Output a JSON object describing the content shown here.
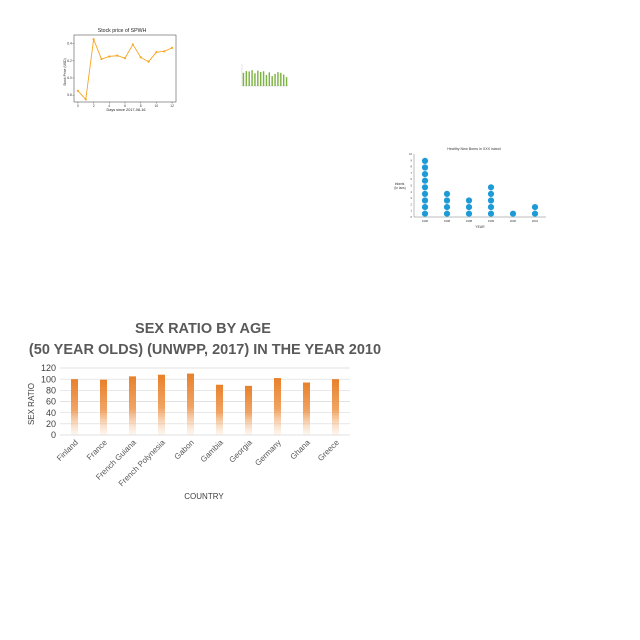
{
  "chart_data": [
    {
      "type": "line",
      "title": "Stock price of SPWH",
      "xlabel": "Days since 2017-08-16",
      "ylabel": "Stock Price (USD)",
      "x": [
        0,
        1,
        2,
        3,
        4,
        5,
        6,
        7,
        8,
        9,
        10,
        11,
        12
      ],
      "values": [
        5.85,
        5.75,
        6.45,
        6.22,
        6.25,
        6.26,
        6.23,
        6.39,
        6.24,
        6.19,
        6.3,
        6.31,
        6.35
      ],
      "xlim": [
        -0.5,
        12.5
      ],
      "ylim": [
        5.72,
        6.5
      ],
      "xticks": [
        "0",
        "2",
        "4",
        "6",
        "8",
        "10",
        "12"
      ],
      "yticks": [
        "5.8",
        "6.0",
        "6.2",
        "6.4"
      ],
      "color": "#f5a623",
      "grid": false
    },
    {
      "type": "bar",
      "values": [
        60,
        68,
        66,
        72,
        58,
        70,
        64,
        67,
        50,
        62,
        45,
        55,
        63,
        60,
        52,
        40
      ],
      "ylim": [
        0,
        100
      ],
      "color": "#7cb342",
      "grid": false
    },
    {
      "type": "scatter",
      "title": "Healthy New Borns in XXX Island",
      "xlabel": "YEAR",
      "ylabel": "Infants (In lacs)",
      "categories": [
        "1996",
        "1998",
        "1998",
        "1999",
        "2000",
        "2001"
      ],
      "values": [
        9,
        4,
        3,
        5,
        1,
        2
      ],
      "ylim": [
        0,
        10
      ],
      "yticks": [
        "0",
        "1",
        "2",
        "3",
        "4",
        "5",
        "6",
        "7",
        "8",
        "9",
        "10"
      ],
      "color": "#1e9bd7",
      "grid": false
    },
    {
      "type": "bar",
      "title": "SEX RATIO BY AGE (50 YEAR OLDS) (UNWPP, 2017) IN THE YEAR 2010",
      "xlabel": "COUNTRY",
      "ylabel": "SEX RATIO",
      "categories": [
        "Finland",
        "France",
        "French Guiana",
        "French Polynesia",
        "Gabon",
        "Gambia",
        "Georgia",
        "Germany",
        "Ghana",
        "Greece"
      ],
      "values": [
        100,
        99,
        105,
        108,
        110,
        90,
        88,
        102,
        94,
        100
      ],
      "ylim": [
        0,
        120
      ],
      "yticks": [
        "0",
        "20",
        "40",
        "60",
        "80",
        "100",
        "120"
      ],
      "color": "#e8802a",
      "grid": true
    }
  ]
}
